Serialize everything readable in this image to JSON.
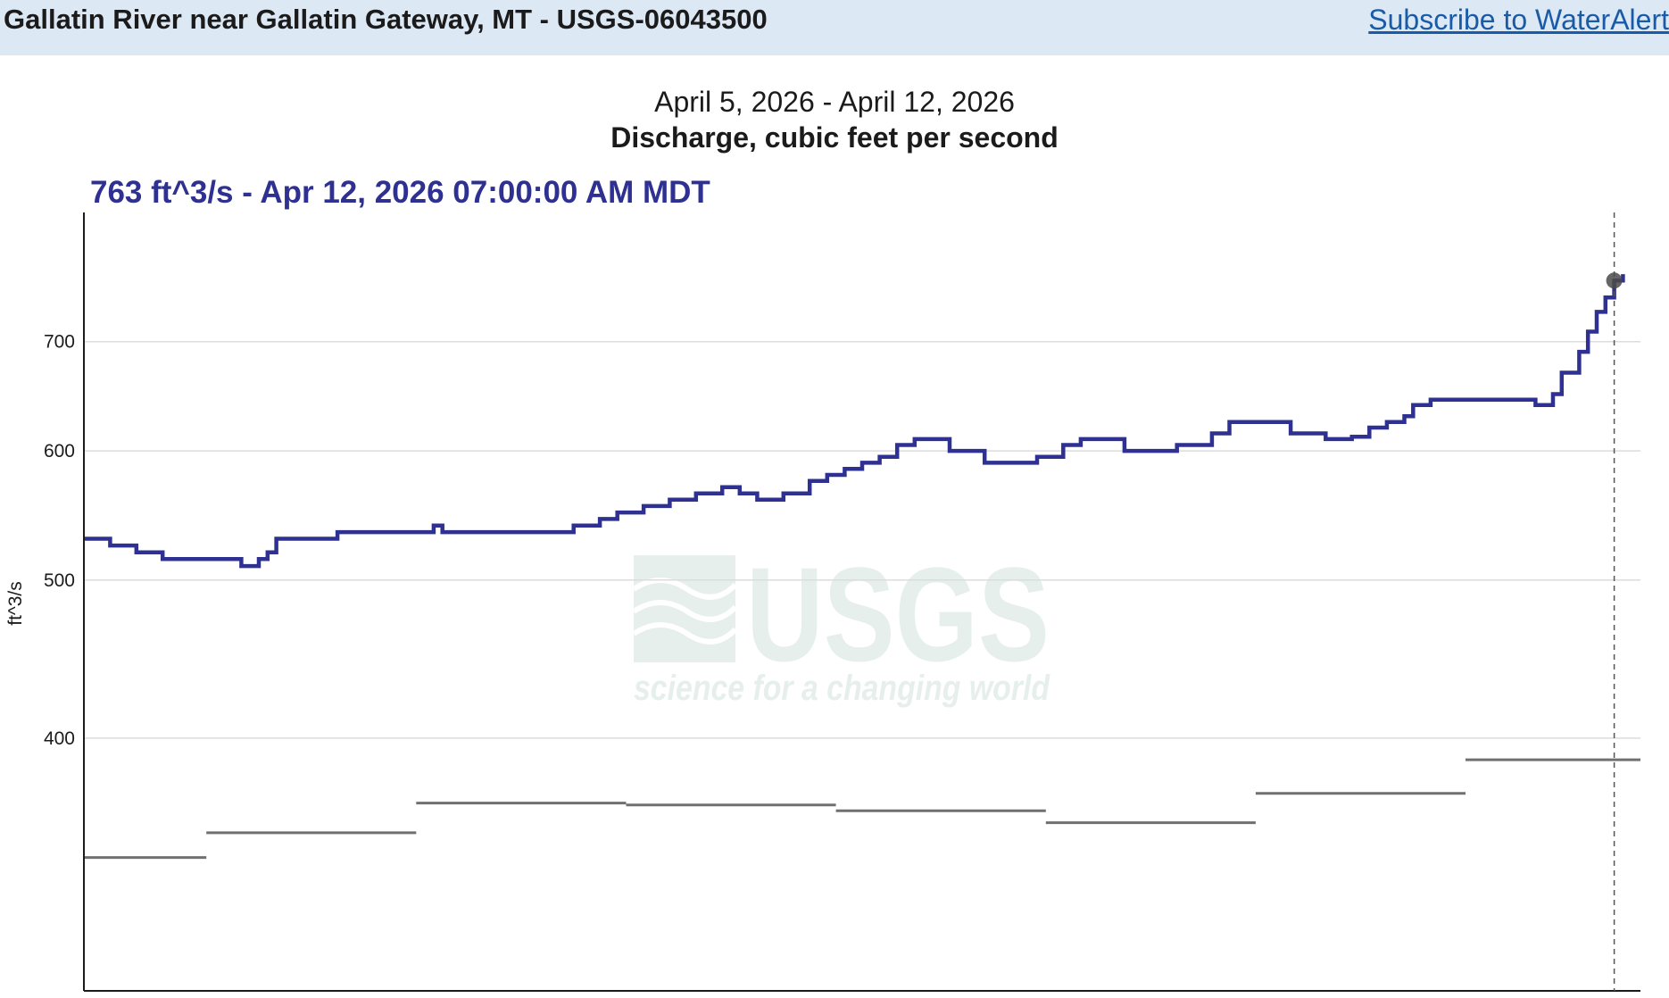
{
  "header": {
    "site_title": "Gallatin River near Gallatin Gateway, MT - USGS-06043500",
    "subscribe_label": "Subscribe to WaterAlert"
  },
  "watermark": {
    "logo_text": "USGS",
    "tagline": "science for a changing world"
  },
  "chart_data": {
    "type": "line",
    "subtitle": "April 5, 2026 - April 12, 2026",
    "title": "Discharge, cubic feet per second",
    "current_reading": "763 ft^3/s - Apr 12, 2026 07:00:00 AM MDT",
    "ylabel": "ft^3/s",
    "y_scale": "log",
    "ylim": [
      280,
      840
    ],
    "y_ticks": [
      {
        "value": 400,
        "label": "400"
      },
      {
        "value": 500,
        "label": "500"
      },
      {
        "value": 600,
        "label": "600"
      },
      {
        "value": 700,
        "label": "700"
      }
    ],
    "grid": true,
    "x_range": [
      "2026-04-05T00:00",
      "2026-04-12T10:00"
    ],
    "cursor_time": "2026-04-12T07:00",
    "colors": {
      "discharge": "#2e3192",
      "median": "#707070",
      "grid": "#dcdcdc",
      "cursor_point": "#4a4a4a"
    },
    "series": [
      {
        "key": "discharge",
        "x": [
          "2026-04-05T00:00",
          "2026-04-05T03:00",
          "2026-04-05T06:00",
          "2026-04-05T09:00",
          "2026-04-05T15:00",
          "2026-04-05T18:00",
          "2026-04-05T19:00",
          "2026-04-05T20:00",
          "2026-04-05T21:00",
          "2026-04-05T22:00",
          "2026-04-06T03:00",
          "2026-04-06T05:00",
          "2026-04-06T12:00",
          "2026-04-06T16:00",
          "2026-04-06T17:00",
          "2026-04-06T22:00",
          "2026-04-07T01:00",
          "2026-04-07T04:00",
          "2026-04-07T08:00",
          "2026-04-07T11:00",
          "2026-04-07T13:00",
          "2026-04-07T16:00",
          "2026-04-07T19:00",
          "2026-04-07T22:00",
          "2026-04-08T01:00",
          "2026-04-08T03:00",
          "2026-04-08T05:00",
          "2026-04-08T08:00",
          "2026-04-08T11:00",
          "2026-04-08T13:00",
          "2026-04-08T15:00",
          "2026-04-08T17:00",
          "2026-04-08T19:00",
          "2026-04-08T21:00",
          "2026-04-08T23:00",
          "2026-04-09T03:00",
          "2026-04-09T07:00",
          "2026-04-09T10:00",
          "2026-04-09T13:00",
          "2026-04-09T16:00",
          "2026-04-09T18:00",
          "2026-04-09T23:00",
          "2026-04-10T03:00",
          "2026-04-10T05:00",
          "2026-04-10T07:00",
          "2026-04-10T09:00",
          "2026-04-10T11:00",
          "2026-04-10T15:00",
          "2026-04-10T18:00",
          "2026-04-10T22:00",
          "2026-04-11T01:00",
          "2026-04-11T03:00",
          "2026-04-11T05:00",
          "2026-04-11T07:00",
          "2026-04-11T08:00",
          "2026-04-11T10:00",
          "2026-04-11T15:00",
          "2026-04-11T19:00",
          "2026-04-11T22:00",
          "2026-04-12T00:00",
          "2026-04-12T01:00",
          "2026-04-12T03:00",
          "2026-04-12T04:00",
          "2026-04-12T05:00",
          "2026-04-12T06:00",
          "2026-04-12T07:00",
          "2026-04-12T08:00"
        ],
        "y": [
          530,
          525,
          520,
          515,
          515,
          510,
          510,
          515,
          520,
          530,
          530,
          535,
          535,
          540,
          535,
          535,
          535,
          535,
          540,
          545,
          550,
          555,
          560,
          565,
          570,
          565,
          560,
          565,
          575,
          580,
          585,
          590,
          595,
          605,
          610,
          600,
          590,
          590,
          595,
          605,
          610,
          600,
          600,
          605,
          605,
          615,
          625,
          625,
          615,
          610,
          612,
          620,
          625,
          630,
          640,
          645,
          645,
          645,
          640,
          650,
          670,
          690,
          710,
          730,
          745,
          763,
          770
        ]
      },
      {
        "key": "median",
        "x": [
          "2026-04-05T00:00",
          "2026-04-05T14:00",
          "2026-04-06T14:00",
          "2026-04-07T14:00",
          "2026-04-08T14:00",
          "2026-04-09T14:00",
          "2026-04-10T14:00",
          "2026-04-11T14:00",
          "2026-04-12T10:00"
        ],
        "y": [
          338,
          350,
          365,
          364,
          361,
          355,
          370,
          388,
          388
        ]
      }
    ]
  }
}
